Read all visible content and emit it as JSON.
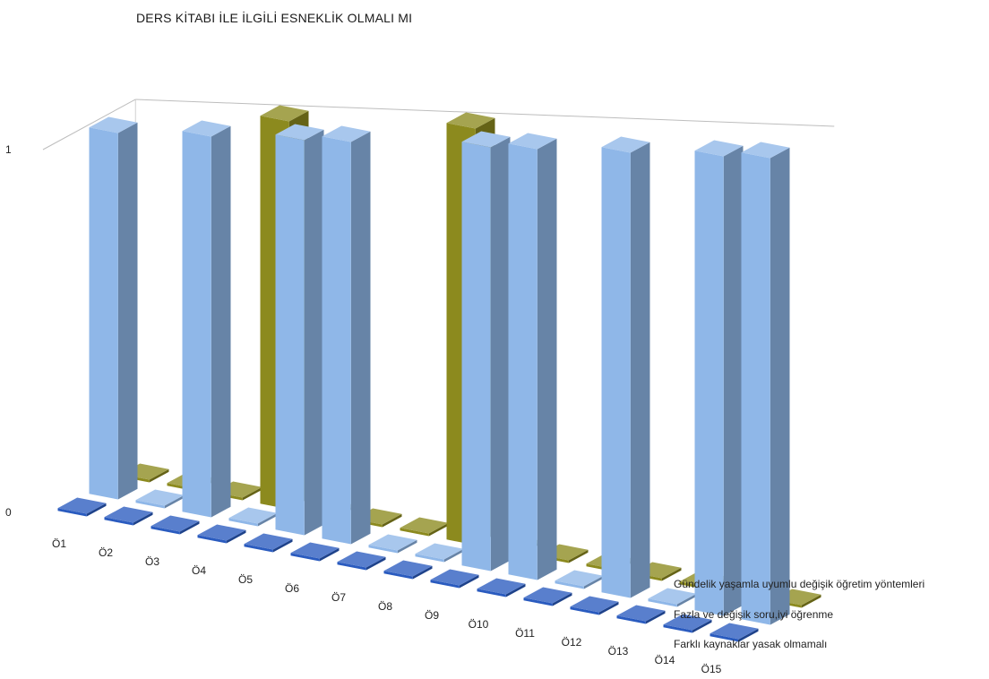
{
  "chart_data": {
    "type": "bar",
    "title": "DERS KİTABI İLE İLGİLİ ESNEKLİK OLMALI MI",
    "categories": [
      "Ö1",
      "Ö2",
      "Ö3",
      "Ö4",
      "Ö5",
      "Ö6",
      "Ö7",
      "Ö8",
      "Ö9",
      "Ö10",
      "Ö11",
      "Ö12",
      "Ö13",
      "Ö14",
      "Ö15"
    ],
    "series": [
      {
        "name": "Gündelik yaşamla uyumlu değişik öğretim yöntemleri",
        "color": "#2A5BBF",
        "values": [
          0,
          0,
          0,
          0,
          0,
          0,
          0,
          0,
          0,
          0,
          0,
          0,
          0,
          0,
          0
        ]
      },
      {
        "name": "Fazla ve değişik soru,iyi öğrenme",
        "color": "#8FB7E8",
        "values": [
          1,
          0,
          1,
          0,
          1,
          1,
          0,
          0,
          1,
          1,
          0,
          1,
          0,
          1,
          1
        ]
      },
      {
        "name": "Farklı kaynaklar yasak olmamalı",
        "color": "#8C8A1E",
        "values": [
          0,
          0,
          0,
          1,
          0,
          0,
          0,
          1,
          0,
          0,
          0,
          0,
          0,
          0,
          0
        ]
      }
    ],
    "y_ticks": [
      "0",
      "1"
    ],
    "ylim": [
      0,
      1
    ],
    "legend_position": "right",
    "perspective": "3d"
  }
}
